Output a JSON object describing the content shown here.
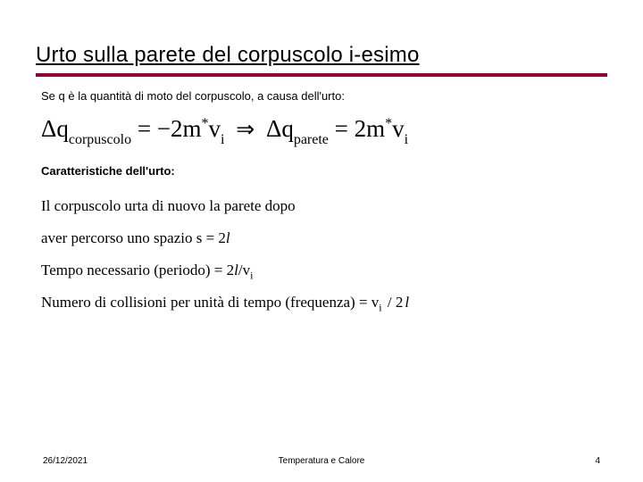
{
  "title": "Urto sulla parete del corpuscolo i-esimo",
  "accent_color": "#990033",
  "intro": "Se q è la quantità di moto del corpuscolo, a causa dell'urto:",
  "equation": {
    "delta": "Δ",
    "q": "q",
    "sub_corp": "corpuscolo",
    "eq1_rhs": "= −2m",
    "star": "*",
    "v": "v",
    "sub_i": "i",
    "implies": "⇒",
    "sub_parete": "parete",
    "eq2_rhs": "= 2m"
  },
  "charac_label": "Caratteristiche dell'urto:",
  "lines": {
    "l1a": "Il corpuscolo urta di nuovo la parete dopo",
    "l1b_pre": "aver percorso uno spazio s  =   2",
    "l2_pre": "Tempo necessario (periodo)   =   2",
    "l2_mid": "/v",
    "l3_pre": "Numero di collisioni per unità di tempo (frequenza)   =   v",
    "l3_mid": " / 2",
    "ell": "l",
    "i": "i"
  },
  "footer": {
    "date": "26/12/2021",
    "topic": "Temperatura e Calore",
    "page": "4"
  }
}
